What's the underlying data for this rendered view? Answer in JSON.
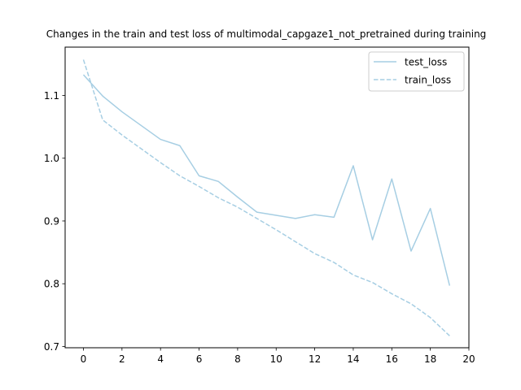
{
  "chart_data": {
    "type": "line",
    "title": "Changes in the train and test loss of multimodal_capgaze1_not_pretrained during training",
    "xlabel": "",
    "ylabel": "",
    "xlim": [
      -0.95,
      20
    ],
    "ylim": [
      0.698,
      1.177
    ],
    "xticks": [
      0,
      2,
      4,
      6,
      8,
      10,
      12,
      14,
      16,
      18,
      20
    ],
    "yticks": [
      0.7,
      0.8,
      0.9,
      1.0,
      1.1
    ],
    "ytick_labels": [
      "0.7",
      "0.8",
      "0.9",
      "1.0",
      "1.1"
    ],
    "grid": false,
    "legend": {
      "position": "top-right"
    },
    "x": [
      0,
      1,
      2,
      3,
      4,
      5,
      6,
      7,
      8,
      9,
      10,
      11,
      12,
      13,
      14,
      15,
      16,
      17,
      18,
      19
    ],
    "series": [
      {
        "name": "test_loss",
        "style": "solid",
        "color": "#a6cee3",
        "values": [
          1.133,
          1.099,
          1.074,
          1.052,
          1.03,
          1.02,
          0.972,
          0.963,
          0.938,
          0.914,
          0.909,
          0.904,
          0.91,
          0.906,
          0.988,
          0.87,
          0.967,
          0.852,
          0.92,
          0.797
        ]
      },
      {
        "name": "train_loss",
        "style": "dashed",
        "color": "#a6cee3",
        "values": [
          1.157,
          1.061,
          1.037,
          1.015,
          0.993,
          0.972,
          0.955,
          0.937,
          0.922,
          0.904,
          0.886,
          0.867,
          0.848,
          0.834,
          0.814,
          0.802,
          0.784,
          0.768,
          0.746,
          0.717
        ]
      }
    ]
  }
}
